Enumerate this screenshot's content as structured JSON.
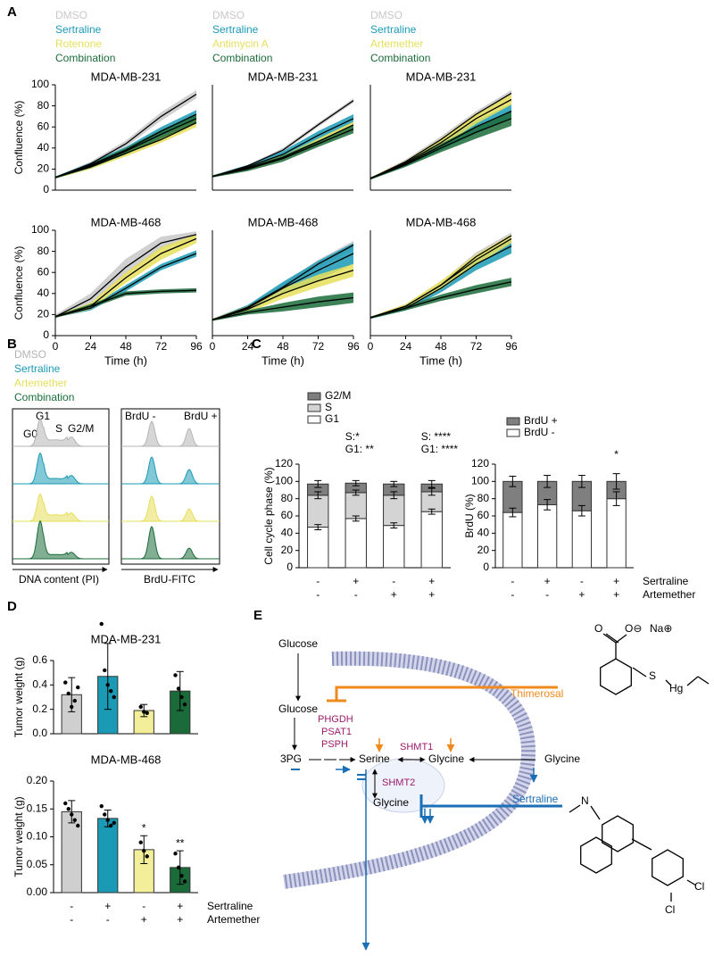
{
  "panels": [
    "A",
    "B",
    "C",
    "D",
    "E"
  ],
  "panel_b": {
    "legend": [
      "DMSO",
      "Sertraline",
      "Artemether",
      "Combination"
    ],
    "legend_colors": [
      "#b4b4b4",
      "#1b9ab5",
      "#e6df5a",
      "#1b6b3a"
    ],
    "peaks": [
      "G0",
      "G1",
      "S",
      "G2/M"
    ],
    "brdu_peaks": [
      "BrdU -",
      "BrdU +"
    ],
    "xlabels": [
      "DNA content (PI)",
      "BrdU-FITC"
    ]
  },
  "panel_e": {
    "glucose_out": "Glucose",
    "glucose_in": "Glucose",
    "enzymes": [
      "PHGDH",
      "PSAT1",
      "PSPH"
    ],
    "pg3": "3PG",
    "serine": "Serine",
    "shmt1": "SHMT1",
    "glycine_cyto": "Glycine",
    "glycine_out": "Glycine",
    "shmt2": "SHMT2",
    "glycine_mito": "Glycine",
    "thimerosal": "Thimerosal",
    "sertraline": "Sertraline",
    "thimerosal_atoms": [
      "O",
      "O⊖",
      "Na⊕",
      "S",
      "Hg"
    ],
    "sertraline_atoms": [
      "N",
      "Cl",
      "Cl"
    ]
  },
  "chart_data": [
    {
      "type": "line",
      "title": "MDA-MB-231",
      "ylabel": "Confluence (%)",
      "line_color": "#000000",
      "x": [
        0,
        24,
        48,
        72,
        96
      ],
      "xlim": [
        0,
        96
      ],
      "ylim": [
        0,
        100
      ],
      "yticks": [
        0,
        20,
        40,
        60,
        80,
        100
      ],
      "series": [
        {
          "name": "DMSO",
          "color": "#c8c8c8",
          "values": [
            12,
            25,
            44,
            70,
            91
          ],
          "errors": [
            1,
            2,
            3,
            4,
            4
          ]
        },
        {
          "name": "Sertraline",
          "color": "#1b9ab5",
          "values": [
            12,
            24,
            38,
            56,
            72
          ],
          "errors": [
            1,
            2,
            3,
            4,
            4
          ]
        },
        {
          "name": "Rotenone",
          "color": "#e6df5a",
          "values": [
            12,
            22,
            35,
            48,
            64
          ],
          "errors": [
            1,
            2,
            3,
            3,
            4
          ]
        },
        {
          "name": "Combination",
          "color": "#1b6b3a",
          "values": [
            12,
            23,
            37,
            53,
            68
          ],
          "errors": [
            1,
            2,
            3,
            4,
            4
          ]
        }
      ]
    },
    {
      "type": "line",
      "title": "MDA-MB-231",
      "line_color": "#000000",
      "x": [
        0,
        24,
        48,
        72,
        96
      ],
      "xlim": [
        0,
        96
      ],
      "ylim": [
        0,
        100
      ],
      "series": [
        {
          "name": "DMSO",
          "color": "#c8c8c8",
          "values": [
            13,
            23,
            38,
            62,
            85
          ],
          "errors": [
            1,
            1,
            2,
            2,
            2
          ]
        },
        {
          "name": "Sertraline",
          "color": "#1b9ab5",
          "values": [
            13,
            22,
            34,
            52,
            68
          ],
          "errors": [
            1,
            2,
            3,
            4,
            4
          ]
        },
        {
          "name": "Antimycin A",
          "color": "#e6df5a",
          "values": [
            13,
            21,
            31,
            46,
            62
          ],
          "errors": [
            1,
            2,
            2,
            3,
            3
          ]
        },
        {
          "name": "Combination",
          "color": "#1b6b3a",
          "values": [
            13,
            20,
            30,
            44,
            58
          ],
          "errors": [
            1,
            2,
            3,
            3,
            4
          ]
        }
      ]
    },
    {
      "type": "line",
      "title": "MDA-MB-231",
      "line_color": "#000000",
      "x": [
        0,
        24,
        48,
        72,
        96
      ],
      "xlim": [
        0,
        96
      ],
      "ylim": [
        0,
        100
      ],
      "series": [
        {
          "name": "DMSO",
          "color": "#c8c8c8",
          "values": [
            11,
            27,
            48,
            72,
            92
          ],
          "errors": [
            1,
            2,
            3,
            3,
            3
          ]
        },
        {
          "name": "Sertraline",
          "color": "#1b9ab5",
          "values": [
            11,
            25,
            42,
            60,
            75
          ],
          "errors": [
            1,
            2,
            4,
            6,
            7
          ]
        },
        {
          "name": "Artemether",
          "color": "#e6df5a",
          "values": [
            11,
            26,
            45,
            68,
            86
          ],
          "errors": [
            1,
            2,
            4,
            5,
            5
          ]
        },
        {
          "name": "Combination",
          "color": "#1b6b3a",
          "values": [
            11,
            24,
            40,
            55,
            68
          ],
          "errors": [
            1,
            2,
            4,
            6,
            7
          ]
        }
      ]
    },
    {
      "type": "line",
      "title": "MDA-MB-468",
      "ylabel": "Confluence (%)",
      "xlabel": "Time (h)",
      "line_color": "#000000",
      "x": [
        0,
        24,
        48,
        72,
        96
      ],
      "xlim": [
        0,
        96
      ],
      "xticks": [
        0,
        24,
        48,
        72,
        96
      ],
      "ylim": [
        0,
        100
      ],
      "yticks": [
        0,
        20,
        40,
        60,
        80,
        100
      ],
      "series": [
        {
          "color": "#c8c8c8",
          "values": [
            18,
            35,
            65,
            88,
            96
          ],
          "errors": [
            2,
            5,
            8,
            6,
            3
          ]
        },
        {
          "color": "#1b9ab5",
          "values": [
            18,
            26,
            45,
            65,
            78
          ],
          "errors": [
            1,
            2,
            3,
            3,
            3
          ]
        },
        {
          "color": "#e6df5a",
          "values": [
            18,
            28,
            55,
            78,
            92
          ],
          "errors": [
            1,
            3,
            5,
            6,
            4
          ]
        },
        {
          "color": "#1b6b3a",
          "values": [
            18,
            28,
            40,
            42,
            43
          ],
          "errors": [
            1,
            2,
            2,
            2,
            2
          ]
        }
      ]
    },
    {
      "type": "line",
      "title": "MDA-MB-468",
      "xlabel": "Time (h)",
      "line_color": "#000000",
      "x": [
        0,
        24,
        48,
        72,
        96
      ],
      "xlim": [
        0,
        96
      ],
      "xticks": [
        0,
        24,
        48,
        72,
        96
      ],
      "ylim": [
        0,
        100
      ],
      "series": [
        {
          "color": "#c8c8c8",
          "values": [
            15,
            27,
            46,
            68,
            86
          ],
          "errors": [
            1,
            2,
            3,
            4,
            4
          ]
        },
        {
          "color": "#1b9ab5",
          "values": [
            15,
            26,
            45,
            62,
            78
          ],
          "errors": [
            1,
            3,
            6,
            9,
            10
          ]
        },
        {
          "color": "#e6df5a",
          "values": [
            15,
            25,
            40,
            52,
            62
          ],
          "errors": [
            1,
            3,
            5,
            6,
            6
          ]
        },
        {
          "color": "#1b6b3a",
          "values": [
            15,
            22,
            27,
            32,
            36
          ],
          "errors": [
            1,
            2,
            4,
            5,
            5
          ]
        }
      ]
    },
    {
      "type": "line",
      "title": "MDA-MB-468",
      "xlabel": "Time (h)",
      "line_color": "#000000",
      "x": [
        0,
        24,
        48,
        72,
        96
      ],
      "xlim": [
        0,
        96
      ],
      "xticks": [
        0,
        24,
        48,
        72,
        96
      ],
      "ylim": [
        0,
        100
      ],
      "series": [
        {
          "color": "#c8c8c8",
          "values": [
            17,
            28,
            48,
            75,
            95
          ],
          "errors": [
            1,
            2,
            3,
            4,
            3
          ]
        },
        {
          "color": "#1b9ab5",
          "values": [
            17,
            26,
            45,
            68,
            85
          ],
          "errors": [
            1,
            2,
            4,
            6,
            7
          ]
        },
        {
          "color": "#e6df5a",
          "values": [
            17,
            28,
            48,
            72,
            92
          ],
          "errors": [
            1,
            2,
            4,
            5,
            4
          ]
        },
        {
          "color": "#1b6b3a",
          "values": [
            17,
            26,
            36,
            44,
            51
          ],
          "errors": [
            1,
            2,
            3,
            4,
            4
          ]
        }
      ]
    },
    {
      "type": "stacked_bar",
      "ylabel": "Cell cycle phase (%)",
      "ylim": [
        0,
        120
      ],
      "yticks": [
        0,
        20,
        40,
        60,
        80,
        100,
        120
      ],
      "series": [
        {
          "name": "G1",
          "color": "#ffffff",
          "values": [
            47,
            57,
            49,
            65
          ],
          "errors": [
            3,
            3,
            3,
            3
          ]
        },
        {
          "name": "S",
          "color": "#d4d4d4",
          "values": [
            37,
            30,
            35,
            23
          ],
          "errors": [
            4,
            3,
            4,
            4
          ]
        },
        {
          "name": "G2/M",
          "color": "#7f7f7f",
          "values": [
            13,
            11,
            13,
            9
          ],
          "errors": [
            4,
            3,
            3,
            4
          ]
        }
      ],
      "annotations": [
        null,
        [
          "S:*",
          "G1: **"
        ],
        null,
        [
          "S: ****",
          "G1: ****"
        ]
      ],
      "treatments": [
        {
          "marks": [
            "-",
            "+",
            "-",
            "+"
          ]
        },
        {
          "marks": [
            "-",
            "-",
            "+",
            "+"
          ]
        }
      ]
    },
    {
      "type": "stacked_bar",
      "ylabel": "BrdU (%)",
      "ylim": [
        0,
        120
      ],
      "yticks": [
        0,
        20,
        40,
        60,
        80,
        100,
        120
      ],
      "series": [
        {
          "name": "BrdU -",
          "color": "#ffffff",
          "values": [
            64,
            73,
            66,
            80
          ],
          "errors": [
            5,
            6,
            6,
            8
          ]
        },
        {
          "name": "BrdU +",
          "color": "#7f7f7f",
          "values": [
            36,
            27,
            34,
            20
          ],
          "errors": [
            6,
            7,
            7,
            9
          ]
        }
      ],
      "annotations": [
        null,
        null,
        null,
        [
          "*"
        ]
      ],
      "treatments": [
        {
          "name": "Sertraline",
          "marks": [
            "-",
            "+",
            "-",
            "+"
          ]
        },
        {
          "name": "Artemether",
          "marks": [
            "-",
            "-",
            "+",
            "+"
          ]
        }
      ]
    },
    {
      "type": "bar",
      "title": "MDA-MB-231",
      "ylabel": "Tumor weight (g)",
      "ylim": [
        0,
        0.6
      ],
      "yticks": [
        {
          "value": 0,
          "label": "0.0"
        },
        0.2,
        0.4,
        0.6
      ],
      "values": [
        0.32,
        0.47,
        0.19,
        0.35
      ],
      "errors": [
        0.14,
        0.27,
        0.05,
        0.16
      ],
      "colors": [
        "#cfcfcf",
        "#1b9ab5",
        "#f3ee9a",
        "#1b6b3a"
      ],
      "points": [
        [
          0.42,
          0.33,
          0.22,
          0.27,
          0.38
        ],
        [
          0.9,
          0.52,
          0.4,
          0.35,
          0.3
        ],
        [
          0.22,
          0.18,
          0.17
        ],
        [
          0.48,
          0.37,
          0.3,
          0.24
        ]
      ]
    },
    {
      "type": "bar",
      "title": "MDA-MB-468",
      "ylabel": "Tumor weight (g)",
      "ylim": [
        0,
        0.2
      ],
      "yticks": [
        {
          "value": 0,
          "label": "0.00"
        },
        0.05,
        {
          "value": 0.1,
          "label": "0.10"
        },
        0.15,
        {
          "value": 0.2,
          "label": "0.20"
        }
      ],
      "values": [
        0.145,
        0.133,
        0.077,
        0.045
      ],
      "errors": [
        0.02,
        0.015,
        0.025,
        0.03
      ],
      "colors": [
        "#cfcfcf",
        "#1b9ab5",
        "#f3ee9a",
        "#1b6b3a"
      ],
      "points": [
        [
          0.16,
          0.15,
          0.14,
          0.13,
          0.12
        ],
        [
          0.155,
          0.14,
          0.13,
          0.12,
          0.125
        ],
        [
          0.09,
          0.075,
          0.065
        ],
        [
          0.07,
          0.045,
          0.03,
          0.02
        ]
      ],
      "annotations": [
        null,
        null,
        "*",
        "**"
      ],
      "treatments": [
        {
          "name": "Sertraline",
          "marks": [
            "-",
            "+",
            "-",
            "+"
          ]
        },
        {
          "name": "Artemether",
          "marks": [
            "-",
            "-",
            "+",
            "+"
          ]
        }
      ]
    }
  ]
}
